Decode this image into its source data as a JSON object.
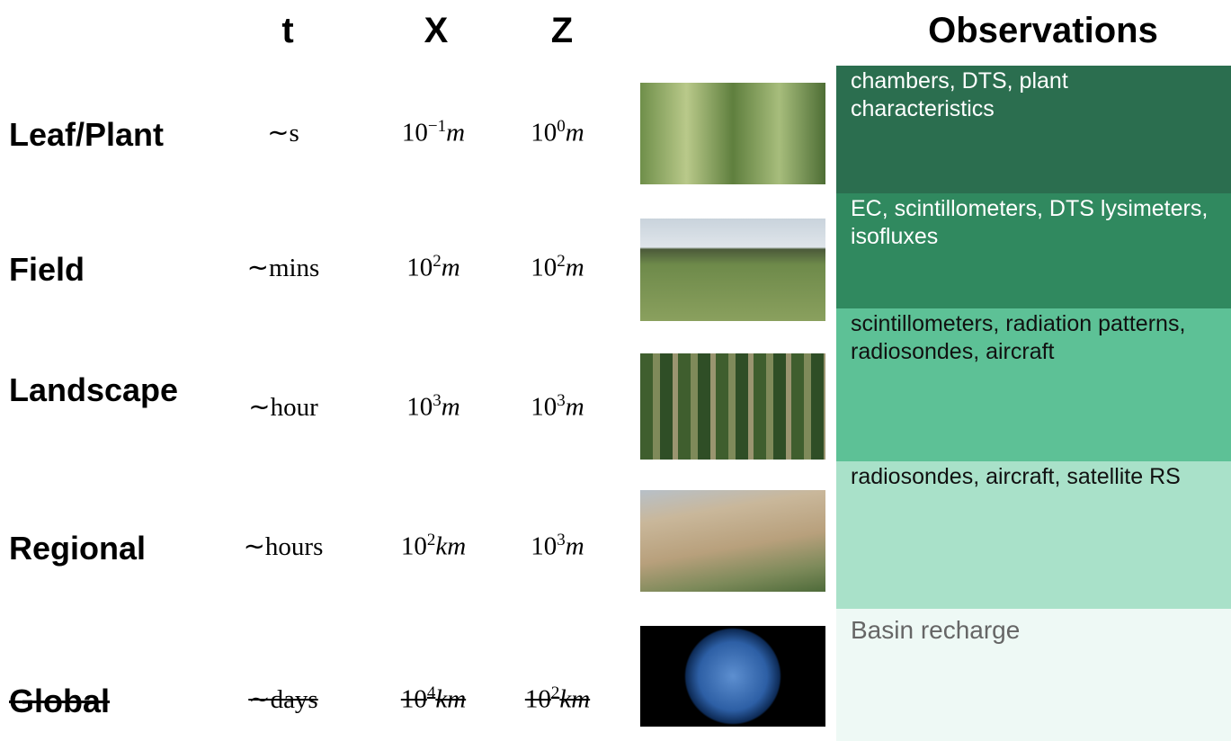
{
  "header": {
    "t": "t",
    "x": "X",
    "z": "Z",
    "observations": "Observations"
  },
  "rows": [
    {
      "scale": "Leaf/Plant",
      "t": "∼s",
      "x": {
        "base": "10",
        "exp": "−1",
        "unit": "m"
      },
      "z": {
        "base": "10",
        "exp": "0",
        "unit": "m"
      },
      "observations": "chambers, DTS, plant characteristics"
    },
    {
      "scale": "Field",
      "t": "∼mins",
      "x": {
        "base": "10",
        "exp": "2",
        "unit": "m"
      },
      "z": {
        "base": "10",
        "exp": "2",
        "unit": "m"
      },
      "observations": "EC, scintillometers, DTS lysimeters, isofluxes"
    },
    {
      "scale": "Landscape",
      "t": "∼hour",
      "x": {
        "base": "10",
        "exp": "3",
        "unit": "m"
      },
      "z": {
        "base": "10",
        "exp": "3",
        "unit": "m"
      },
      "observations": "scintillometers, radiation patterns, radiosondes, aircraft"
    },
    {
      "scale": "Regional",
      "t": "∼hours",
      "x": {
        "base": "10",
        "exp": "2",
        "unit": "km"
      },
      "z": {
        "base": "10",
        "exp": "3",
        "unit": "m"
      },
      "observations": "radiosondes, aircraft, satellite RS"
    },
    {
      "scale": "Global",
      "t": "∼days",
      "x": {
        "base": "10",
        "exp": "4",
        "unit": "km"
      },
      "z": {
        "base": "10",
        "exp": "2",
        "unit": "km"
      },
      "observations": "Basin recharge"
    }
  ]
}
